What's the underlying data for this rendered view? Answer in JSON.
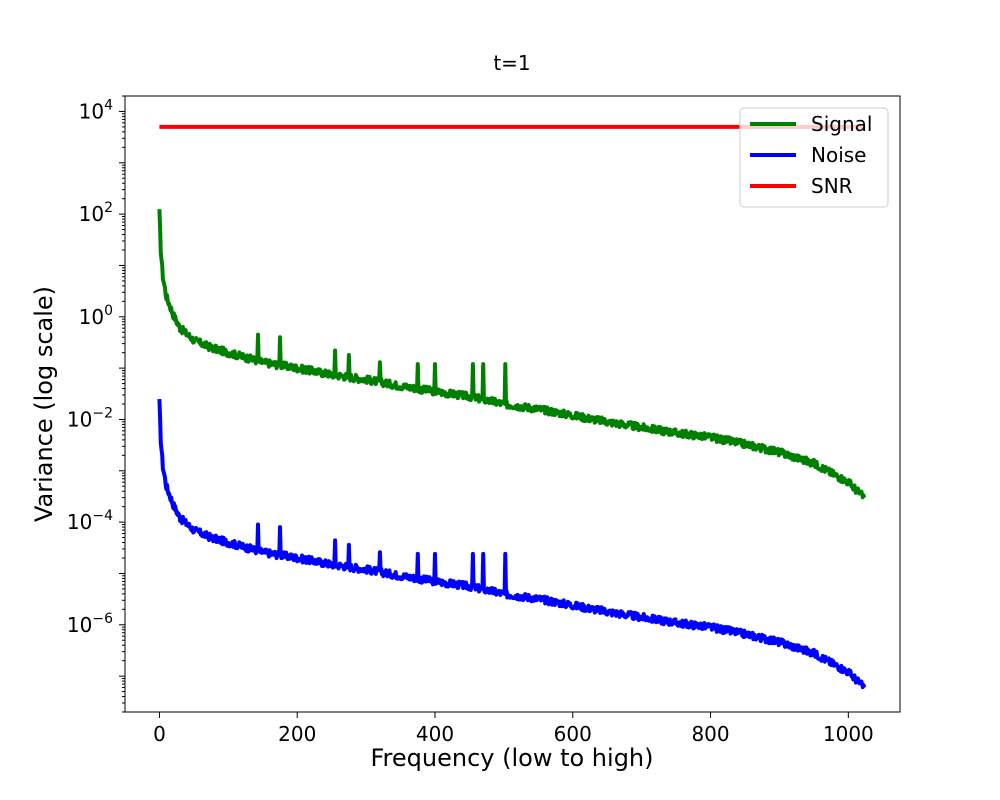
{
  "chart_data": {
    "type": "line",
    "title": "t=1",
    "xlabel": "Frequency (low to high)",
    "ylabel": "Variance (log scale)",
    "xlim": [
      -50,
      1075
    ],
    "ylim": [
      2e-08,
      20000
    ],
    "yscale": "log",
    "x_ticks": [
      0,
      200,
      400,
      600,
      800,
      1000
    ],
    "y_ticks": [
      {
        "value": 1e-06,
        "base": "10",
        "exp": "−6"
      },
      {
        "value": 0.0001,
        "base": "10",
        "exp": "−4"
      },
      {
        "value": 0.01,
        "base": "10",
        "exp": "−2"
      },
      {
        "value": 1,
        "base": "10",
        "exp": "0"
      },
      {
        "value": 100,
        "base": "10",
        "exp": "2"
      },
      {
        "value": 10000,
        "base": "10",
        "exp": "4"
      }
    ],
    "legend_position": "top-right",
    "grid": false,
    "series": [
      {
        "name": "Signal",
        "color": "#008000",
        "x": [
          0,
          2,
          5,
          10,
          20,
          30,
          50,
          75,
          100,
          150,
          200,
          250,
          300,
          350,
          400,
          450,
          500,
          550,
          600,
          650,
          700,
          750,
          800,
          850,
          900,
          950,
          1000,
          1023
        ],
        "y": [
          110,
          20,
          6,
          2.5,
          1.1,
          0.6,
          0.35,
          0.25,
          0.2,
          0.13,
          0.1,
          0.075,
          0.06,
          0.045,
          0.035,
          0.028,
          0.02,
          0.016,
          0.012,
          0.009,
          0.007,
          0.0055,
          0.0045,
          0.0033,
          0.0023,
          0.0014,
          0.0006,
          0.0003
        ],
        "spikes": [
          {
            "x": 143,
            "y": 0.45
          },
          {
            "x": 175,
            "y": 0.4
          },
          {
            "x": 255,
            "y": 0.22
          },
          {
            "x": 275,
            "y": 0.18
          },
          {
            "x": 320,
            "y": 0.13
          },
          {
            "x": 375,
            "y": 0.12
          },
          {
            "x": 400,
            "y": 0.12
          },
          {
            "x": 455,
            "y": 0.12
          },
          {
            "x": 470,
            "y": 0.12
          },
          {
            "x": 502,
            "y": 0.12
          }
        ]
      },
      {
        "name": "Noise",
        "color": "#0000ff",
        "x": [
          0,
          2,
          5,
          10,
          20,
          30,
          50,
          75,
          100,
          150,
          200,
          250,
          300,
          350,
          400,
          450,
          500,
          550,
          600,
          650,
          700,
          750,
          800,
          850,
          900,
          950,
          1000,
          1023
        ],
        "y": [
          0.022,
          0.004,
          0.0012,
          0.0005,
          0.00022,
          0.00012,
          7e-05,
          5e-05,
          4e-05,
          2.6e-05,
          2e-05,
          1.5e-05,
          1.2e-05,
          9e-06,
          7e-06,
          5.6e-06,
          4e-06,
          3.2e-06,
          2.4e-06,
          1.8e-06,
          1.4e-06,
          1.1e-06,
          9e-07,
          6.6e-07,
          4.6e-07,
          2.8e-07,
          1.2e-07,
          6e-08
        ],
        "spikes": [
          {
            "x": 143,
            "y": 9e-05
          },
          {
            "x": 175,
            "y": 8e-05
          },
          {
            "x": 255,
            "y": 4.4e-05
          },
          {
            "x": 275,
            "y": 3.6e-05
          },
          {
            "x": 320,
            "y": 2.6e-05
          },
          {
            "x": 375,
            "y": 2.4e-05
          },
          {
            "x": 400,
            "y": 2.4e-05
          },
          {
            "x": 455,
            "y": 2.4e-05
          },
          {
            "x": 470,
            "y": 2.4e-05
          },
          {
            "x": 502,
            "y": 2.4e-05
          }
        ]
      },
      {
        "name": "SNR",
        "color": "#ff0000",
        "x": [
          0,
          1023
        ],
        "y": [
          5000,
          5000
        ]
      }
    ]
  }
}
